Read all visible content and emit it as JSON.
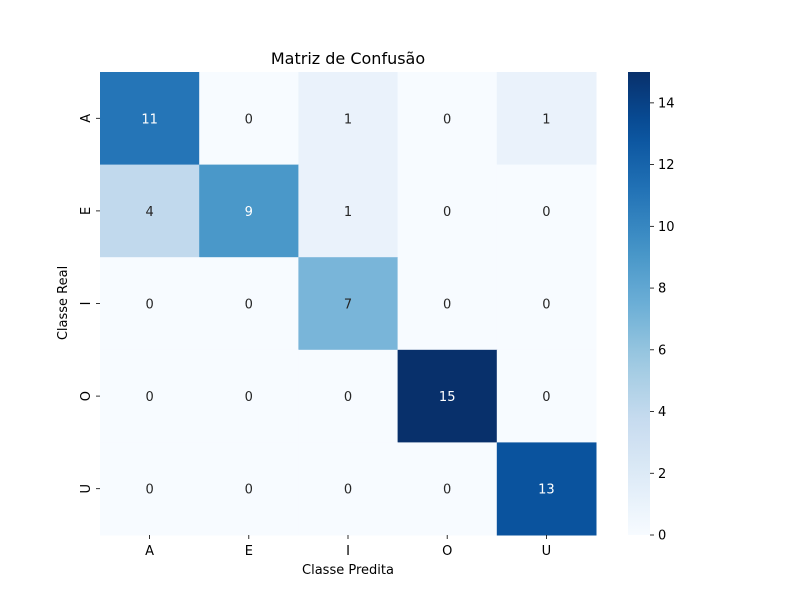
{
  "chart_data": {
    "type": "heatmap",
    "title": "Matriz de Confusão",
    "xlabel": "Classe Predita",
    "ylabel": "Classe Real",
    "x_categories": [
      "A",
      "E",
      "I",
      "O",
      "U"
    ],
    "y_categories": [
      "A",
      "E",
      "I",
      "O",
      "U"
    ],
    "values": [
      [
        11,
        0,
        1,
        0,
        1
      ],
      [
        4,
        9,
        1,
        0,
        0
      ],
      [
        0,
        0,
        7,
        0,
        0
      ],
      [
        0,
        0,
        0,
        15,
        0
      ],
      [
        0,
        0,
        0,
        0,
        13
      ]
    ],
    "colorbar": {
      "min": 0,
      "max": 15,
      "ticks": [
        0,
        2,
        4,
        6,
        8,
        10,
        12,
        14
      ]
    },
    "colormap": "Blues"
  }
}
